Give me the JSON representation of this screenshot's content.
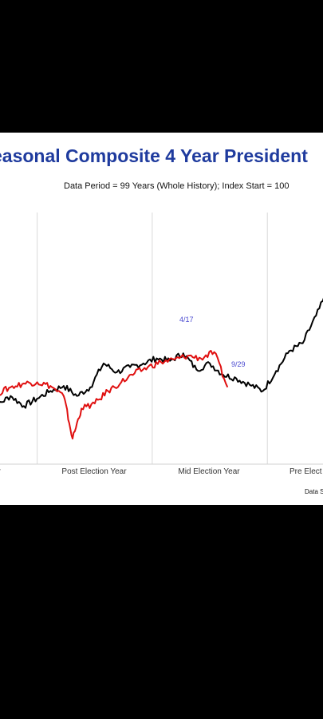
{
  "chart_data": {
    "type": "line",
    "title": "easonal Composite 4 Year President",
    "subtitle": "Data Period = 99 Years (Whole History); Index Start = 100",
    "source_note": "Data S",
    "categories": [
      "ar",
      "Post Election Year",
      "Mid Election Year",
      "Pre Elect"
    ],
    "annotations": [
      "4/17",
      "9/29"
    ],
    "grid": "vertical separators between years",
    "colors": {
      "title": "#1f3b9e",
      "black_series": "#000000",
      "red_series": "#e01010",
      "annotation": "#4a4ad0"
    },
    "series": [
      {
        "color": "#000000",
        "x": [
          0,
          3,
          6,
          9,
          12,
          15,
          18,
          21,
          24,
          27,
          30,
          33,
          36,
          39,
          42,
          45,
          48,
          51,
          54,
          57,
          60,
          63,
          66,
          69,
          72,
          75,
          78,
          81,
          84,
          87,
          90,
          93,
          96,
          99,
          100
        ],
        "values": [
          100,
          97,
          104,
          96,
          102,
          108,
          112,
          104,
          111,
          130,
          123,
          127,
          130,
          134,
          132,
          138,
          125,
          130,
          121,
          118,
          113,
          108,
          124,
          140,
          146,
          168,
          190,
          205,
          209,
          223,
          238,
          251,
          273,
          288,
          305
        ]
      },
      {
        "color": "#e01010",
        "x": [
          0,
          3,
          6,
          9,
          12,
          15,
          18,
          20,
          22,
          25,
          28,
          31,
          34,
          37,
          40,
          43,
          46,
          49,
          52,
          55
        ],
        "values": [
          100,
          106,
          111,
          114,
          115,
          112,
          104,
          70,
          94,
          98,
          108,
          115,
          122,
          127,
          131,
          133,
          136,
          134,
          139,
          111
        ]
      }
    ]
  }
}
